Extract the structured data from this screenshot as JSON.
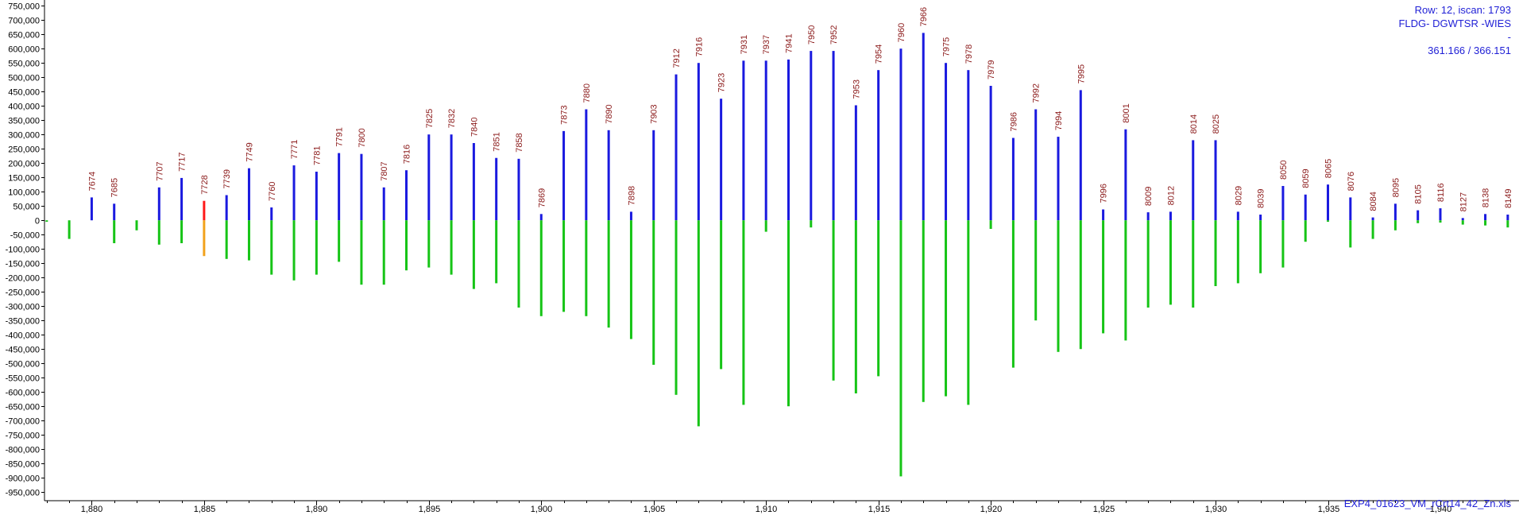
{
  "info": {
    "row_scan": "Row: 12, iscan: 1793",
    "title": "FLDG- DGWTSR -WIES",
    "dash": "-",
    "ratio": "361.166 / 366.151",
    "filename": "EXP4_01623_VM_rCrt14_42_Zn.xls"
  },
  "colors": {
    "up": "#1a1adf",
    "down": "#16c416",
    "up_highlight": "#ff1a1a",
    "down_highlight": "#f2a21c",
    "label": "#8b1a1a",
    "info": "#1f1fd6"
  },
  "chart_data": {
    "type": "bar",
    "xlim": [
      1877.9,
      1943.5
    ],
    "ylim": [
      -980000,
      770000
    ],
    "x_ticks": [
      1880,
      1885,
      1890,
      1895,
      1900,
      1905,
      1910,
      1915,
      1920,
      1925,
      1930,
      1935,
      1940
    ],
    "x_tick_labels": [
      "1,880",
      "1,885",
      "1,890",
      "1,895",
      "1,900",
      "1,905",
      "1,910",
      "1,915",
      "1,920",
      "1,925",
      "1,930",
      "1,935",
      "1,940"
    ],
    "y_ticks": [
      750000,
      700000,
      650000,
      600000,
      550000,
      500000,
      450000,
      400000,
      350000,
      300000,
      250000,
      200000,
      150000,
      100000,
      50000,
      0,
      -50000,
      -100000,
      -150000,
      -200000,
      -250000,
      -300000,
      -350000,
      -400000,
      -450000,
      -500000,
      -550000,
      -600000,
      -650000,
      -700000,
      -750000,
      -800000,
      -850000,
      -900000,
      -950000
    ],
    "y_tick_labels": [
      "750,000",
      "700,000",
      "650,000",
      "600,000",
      "550,000",
      "500,000",
      "450,000",
      "400,000",
      "350,000",
      "300,000",
      "250,000",
      "200,000",
      "150,000",
      "100,000",
      "50,000",
      "0",
      "-50,000",
      "-100,000",
      "-150,000",
      "-200,000",
      "-250,000",
      "-300,000",
      "-350,000",
      "-400,000",
      "-450,000",
      "-500,000",
      "-550,000",
      "-600,000",
      "-650,000",
      "-700,000",
      "-750,000",
      "-800,000",
      "-850,000",
      "-900,000",
      "-950,000"
    ],
    "bars": [
      {
        "x": 1878,
        "up": 0,
        "down": -5000,
        "label": ""
      },
      {
        "x": 1879,
        "up": 0,
        "down": -65000,
        "label": ""
      },
      {
        "x": 1880,
        "up": 80000,
        "down": 0,
        "label": "7674"
      },
      {
        "x": 1881,
        "up": 58000,
        "down": -80000,
        "label": "7685"
      },
      {
        "x": 1882,
        "up": 0,
        "down": -35000,
        "label": ""
      },
      {
        "x": 1883,
        "up": 115000,
        "down": -85000,
        "label": "7707"
      },
      {
        "x": 1884,
        "up": 148000,
        "down": -80000,
        "label": "7717"
      },
      {
        "x": 1885,
        "up": 68000,
        "down": -125000,
        "label": "7728",
        "highlight": true
      },
      {
        "x": 1886,
        "up": 88000,
        "down": -135000,
        "label": "7739"
      },
      {
        "x": 1887,
        "up": 182000,
        "down": -140000,
        "label": "7749"
      },
      {
        "x": 1888,
        "up": 45000,
        "down": -190000,
        "label": "7760"
      },
      {
        "x": 1889,
        "up": 192000,
        "down": -210000,
        "label": "7771"
      },
      {
        "x": 1890,
        "up": 170000,
        "down": -190000,
        "label": "7781"
      },
      {
        "x": 1891,
        "up": 235000,
        "down": -145000,
        "label": "7791"
      },
      {
        "x": 1892,
        "up": 232000,
        "down": -225000,
        "label": "7800"
      },
      {
        "x": 1893,
        "up": 115000,
        "down": -225000,
        "label": "7807"
      },
      {
        "x": 1894,
        "up": 175000,
        "down": -175000,
        "label": "7816"
      },
      {
        "x": 1895,
        "up": 300000,
        "down": -165000,
        "label": "7825"
      },
      {
        "x": 1896,
        "up": 300000,
        "down": -190000,
        "label": "7832"
      },
      {
        "x": 1897,
        "up": 270000,
        "down": -240000,
        "label": "7840"
      },
      {
        "x": 1898,
        "up": 218000,
        "down": -220000,
        "label": "7851"
      },
      {
        "x": 1899,
        "up": 215000,
        "down": -305000,
        "label": "7858"
      },
      {
        "x": 1900,
        "up": 22000,
        "down": -335000,
        "label": "7869"
      },
      {
        "x": 1901,
        "up": 312000,
        "down": -320000,
        "label": "7873"
      },
      {
        "x": 1902,
        "up": 388000,
        "down": -335000,
        "label": "7880"
      },
      {
        "x": 1903,
        "up": 315000,
        "down": -375000,
        "label": "7890"
      },
      {
        "x": 1904,
        "up": 30000,
        "down": -415000,
        "label": "7898"
      },
      {
        "x": 1905,
        "up": 315000,
        "down": -505000,
        "label": "7903"
      },
      {
        "x": 1906,
        "up": 510000,
        "down": -610000,
        "label": "7912"
      },
      {
        "x": 1907,
        "up": 550000,
        "down": -720000,
        "label": "7916"
      },
      {
        "x": 1908,
        "up": 425000,
        "down": -520000,
        "label": "7923"
      },
      {
        "x": 1909,
        "up": 558000,
        "down": -645000,
        "label": "7931"
      },
      {
        "x": 1910,
        "up": 558000,
        "down": -40000,
        "label": "7937"
      },
      {
        "x": 1911,
        "up": 562000,
        "down": -650000,
        "label": "7941"
      },
      {
        "x": 1912,
        "up": 592000,
        "down": -25000,
        "label": "7950"
      },
      {
        "x": 1913,
        "up": 592000,
        "down": -560000,
        "label": "7952"
      },
      {
        "x": 1914,
        "up": 402000,
        "down": -605000,
        "label": "7953"
      },
      {
        "x": 1915,
        "up": 525000,
        "down": -545000,
        "label": "7954"
      },
      {
        "x": 1916,
        "up": 600000,
        "down": -895000,
        "label": "7960"
      },
      {
        "x": 1917,
        "up": 655000,
        "down": -635000,
        "label": "7966"
      },
      {
        "x": 1918,
        "up": 550000,
        "down": -615000,
        "label": "7975"
      },
      {
        "x": 1919,
        "up": 525000,
        "down": -645000,
        "label": "7978"
      },
      {
        "x": 1920,
        "up": 470000,
        "down": -30000,
        "label": "7979"
      },
      {
        "x": 1921,
        "up": 288000,
        "down": -515000,
        "label": "7986"
      },
      {
        "x": 1922,
        "up": 388000,
        "down": -350000,
        "label": "7992"
      },
      {
        "x": 1923,
        "up": 292000,
        "down": -460000,
        "label": "7994"
      },
      {
        "x": 1924,
        "up": 455000,
        "down": -450000,
        "label": "7995"
      },
      {
        "x": 1925,
        "up": 38000,
        "down": -395000,
        "label": "7996"
      },
      {
        "x": 1926,
        "up": 318000,
        "down": -420000,
        "label": "8001"
      },
      {
        "x": 1927,
        "up": 28000,
        "down": -305000,
        "label": "8009"
      },
      {
        "x": 1928,
        "up": 30000,
        "down": -295000,
        "label": "8012"
      },
      {
        "x": 1929,
        "up": 280000,
        "down": -305000,
        "label": "8014"
      },
      {
        "x": 1930,
        "up": 280000,
        "down": -230000,
        "label": "8025"
      },
      {
        "x": 1931,
        "up": 30000,
        "down": -220000,
        "label": "8029"
      },
      {
        "x": 1932,
        "up": 20000,
        "down": -185000,
        "label": "8039"
      },
      {
        "x": 1933,
        "up": 120000,
        "down": -165000,
        "label": "8050"
      },
      {
        "x": 1934,
        "up": 90000,
        "down": -75000,
        "label": "8059"
      },
      {
        "x": 1935,
        "up": 125000,
        "down": -5000,
        "label": "8065"
      },
      {
        "x": 1936,
        "up": 80000,
        "down": -95000,
        "label": "8076"
      },
      {
        "x": 1937,
        "up": 10000,
        "down": -65000,
        "label": "8084"
      },
      {
        "x": 1938,
        "up": 58000,
        "down": -35000,
        "label": "8095"
      },
      {
        "x": 1939,
        "up": 35000,
        "down": -10000,
        "label": "8105"
      },
      {
        "x": 1940,
        "up": 42000,
        "down": -8000,
        "label": "8116"
      },
      {
        "x": 1941,
        "up": 8000,
        "down": -15000,
        "label": "8127"
      },
      {
        "x": 1942,
        "up": 22000,
        "down": -18000,
        "label": "8138"
      },
      {
        "x": 1943,
        "up": 20000,
        "down": -25000,
        "label": "8149"
      }
    ]
  }
}
